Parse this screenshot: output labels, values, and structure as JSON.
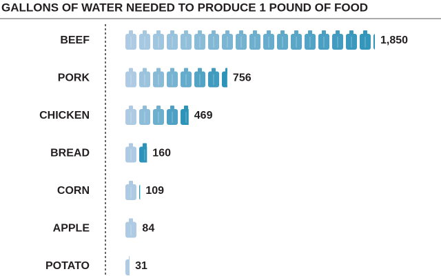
{
  "chart_data": {
    "type": "pictograph",
    "title": "GALLONS OF WATER NEEDED TO PRODUCE 1 POUND OF FOOD",
    "categories": [
      "BEEF",
      "PORK",
      "CHICKEN",
      "BREAD",
      "CORN",
      "APPLE",
      "POTATO"
    ],
    "values": [
      1850,
      756,
      469,
      160,
      109,
      84,
      31
    ],
    "value_labels": [
      "1,850",
      "756",
      "469",
      "160",
      "109",
      "84",
      "31"
    ],
    "colors": [
      "#aecbe3",
      "#2e93b9"
    ]
  }
}
